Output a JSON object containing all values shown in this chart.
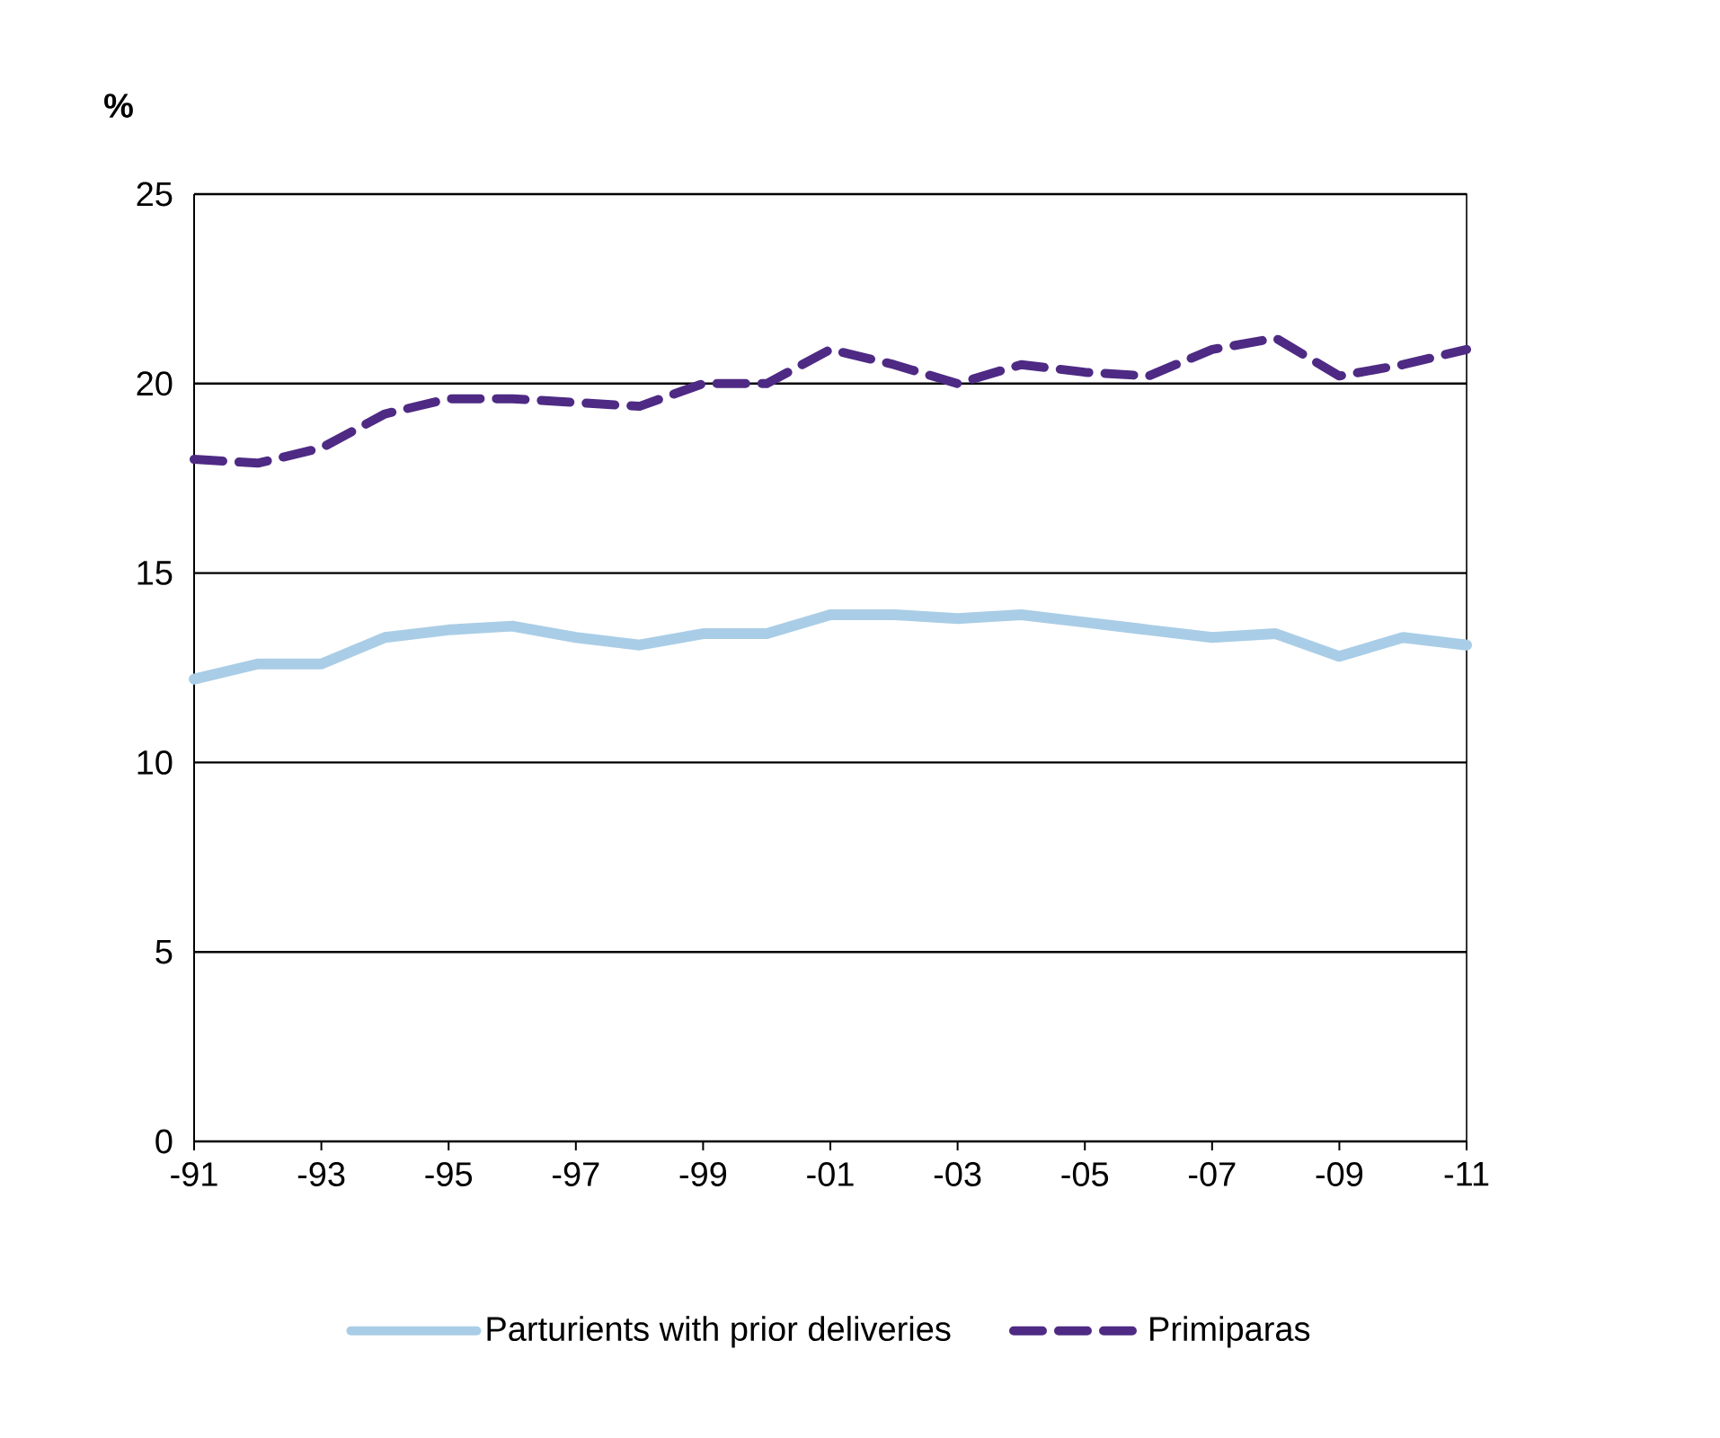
{
  "chart_data": {
    "type": "line",
    "ylabel": "%",
    "categories": [
      "-91",
      null,
      "-93",
      null,
      "-95",
      null,
      "-97",
      null,
      "-99",
      null,
      "-01",
      null,
      "-03",
      null,
      "-05",
      null,
      "-07",
      null,
      "-09",
      null,
      "-11"
    ],
    "series": [
      {
        "name": "Parturients with prior deliveries",
        "color": "#a9cde6",
        "line_style": "solid",
        "values": [
          12.2,
          12.6,
          12.6,
          13.3,
          13.5,
          13.6,
          13.3,
          13.1,
          13.4,
          13.4,
          13.9,
          13.9,
          13.8,
          13.9,
          13.7,
          13.5,
          13.3,
          13.4,
          12.8,
          13.3,
          13.1
        ]
      },
      {
        "name": "Primiparas",
        "color": "#4e2a84",
        "line_style": "dashed",
        "values": [
          18.0,
          17.9,
          18.3,
          19.2,
          19.6,
          19.6,
          19.5,
          19.4,
          20.0,
          20.0,
          20.9,
          20.5,
          20.0,
          20.5,
          20.3,
          20.2,
          20.9,
          21.2,
          20.2,
          20.5,
          20.9
        ]
      }
    ],
    "ylim": [
      0,
      25
    ],
    "yticks": [
      0,
      5,
      10,
      15,
      20,
      25
    ],
    "grid": "y",
    "legend": "bottom",
    "marker": "none"
  }
}
